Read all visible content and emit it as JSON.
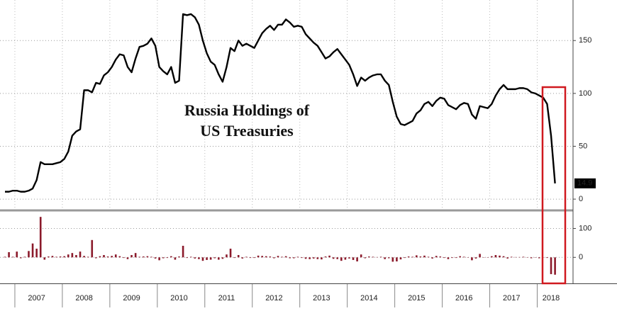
{
  "chart_data": [
    {
      "type": "line",
      "title_lines": [
        "Russia Holdings of",
        "US Treasuries"
      ],
      "color": "#000000",
      "ylim": [
        -10,
        185
      ],
      "yticks": [
        0,
        50,
        100,
        150
      ],
      "grid": true,
      "values": [
        7,
        7,
        8,
        8,
        7,
        7,
        8,
        10,
        18,
        35,
        33,
        33,
        33,
        34,
        35,
        38,
        45,
        60,
        64,
        66,
        103,
        103,
        101,
        110,
        109,
        117,
        120,
        125,
        132,
        137,
        136,
        125,
        120,
        133,
        144,
        145,
        147,
        152,
        145,
        125,
        121,
        118,
        125,
        110,
        112,
        175,
        174,
        175,
        172,
        165,
        150,
        138,
        130,
        127,
        118,
        111,
        125,
        143,
        140,
        150,
        145,
        147,
        145,
        143,
        150,
        157,
        161,
        164,
        160,
        165,
        165,
        170,
        167,
        163,
        164,
        163,
        156,
        152,
        148,
        145,
        139,
        133,
        135,
        139,
        142,
        137,
        132,
        127,
        118,
        107,
        115,
        112,
        115,
        117,
        118,
        118,
        112,
        108,
        92,
        78,
        71,
        70,
        72,
        74,
        81,
        84,
        90,
        92,
        88,
        93,
        96,
        95,
        89,
        87,
        85,
        89,
        91,
        90,
        80,
        76,
        88,
        87,
        86,
        90,
        98,
        104,
        108,
        104,
        104,
        104,
        105,
        105,
        104,
        101,
        100,
        98,
        96,
        90,
        60,
        14.9
      ]
    },
    {
      "type": "bar",
      "color": "#8b1a2b",
      "ylim": [
        -90,
        160
      ],
      "yticks": [
        0,
        100
      ],
      "grid": true,
      "categories": [
        null,
        null,
        null,
        null,
        null,
        null,
        null,
        null,
        "2007",
        null,
        null,
        null,
        null,
        null,
        null,
        null,
        null,
        null,
        null,
        null,
        "2008",
        null,
        null,
        null,
        null,
        null,
        null,
        null,
        null,
        null,
        null,
        null,
        "2009",
        null,
        null,
        null,
        null,
        null,
        null,
        null,
        null,
        null,
        null,
        null,
        "2010",
        null,
        null,
        null,
        null,
        null,
        null,
        null,
        null,
        null,
        null,
        null,
        "2011",
        null,
        null,
        null,
        null,
        null,
        null,
        null,
        null,
        null,
        null,
        null,
        "2012",
        null,
        null,
        null,
        null,
        null,
        null,
        null,
        null,
        null,
        null,
        null,
        "2013",
        null,
        null,
        null,
        null,
        null,
        null,
        null,
        null,
        null,
        null,
        null,
        "2014",
        null,
        null,
        null,
        null,
        null,
        null,
        null,
        null,
        null,
        null,
        null,
        "2015",
        null,
        null,
        null,
        null,
        null,
        null,
        null,
        null,
        null,
        null,
        null,
        "2016",
        null,
        null,
        null,
        null,
        null,
        null,
        null,
        null,
        null,
        null,
        null,
        "2017",
        null,
        null,
        null,
        null,
        null,
        null,
        null,
        null,
        null,
        "2018",
        null
      ],
      "values": [
        2,
        18,
        2,
        20,
        -3,
        2,
        22,
        48,
        30,
        140,
        -8,
        3,
        5,
        2,
        3,
        4,
        10,
        15,
        8,
        20,
        5,
        2,
        60,
        -3,
        4,
        8,
        3,
        5,
        10,
        4,
        -2,
        -6,
        8,
        15,
        2,
        3,
        4,
        2,
        -4,
        -10,
        -3,
        -2,
        4,
        -8,
        3,
        40,
        -2,
        2,
        -4,
        -6,
        -12,
        -9,
        -8,
        -3,
        -8,
        -5,
        10,
        30,
        -2,
        8,
        -4,
        2,
        -2,
        -2,
        6,
        5,
        4,
        3,
        -3,
        5,
        2,
        4,
        -3,
        -3,
        2,
        -2,
        -5,
        -6,
        -4,
        -6,
        -7,
        3,
        6,
        -5,
        -6,
        -12,
        -8,
        -4,
        -9,
        -14,
        10,
        -3,
        3,
        2,
        1,
        2,
        -6,
        -3,
        -15,
        -14,
        -7,
        -2,
        3,
        2,
        7,
        3,
        6,
        2,
        -4,
        5,
        3,
        -2,
        -6,
        -2,
        -2,
        4,
        2,
        -1,
        -10,
        -4,
        12,
        -1,
        -1,
        4,
        8,
        6,
        4,
        -4,
        2,
        1,
        1,
        2,
        -1,
        -3,
        -1,
        -3,
        -1,
        -2,
        -58,
        -60
      ]
    }
  ]
}
